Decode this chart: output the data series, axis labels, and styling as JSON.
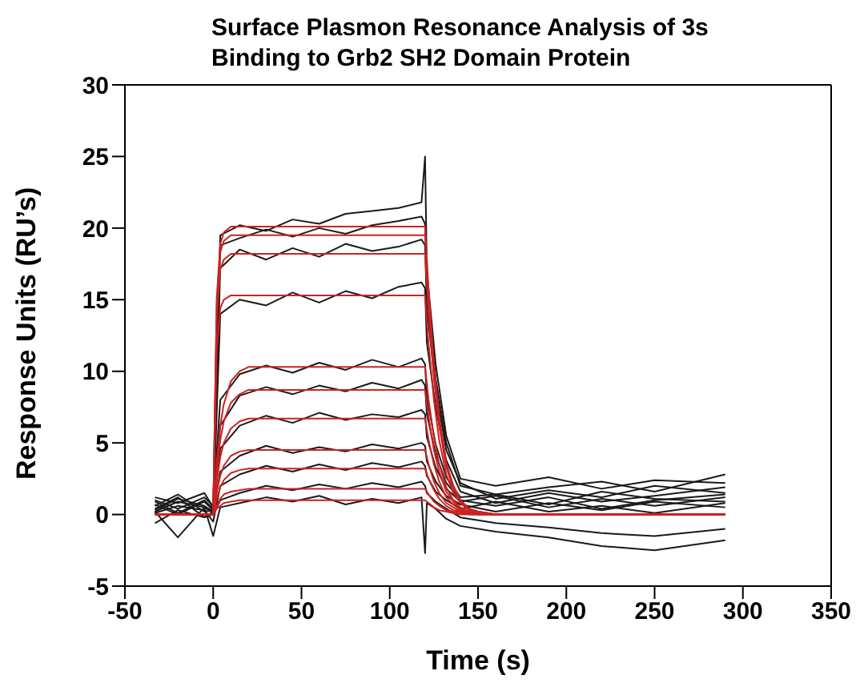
{
  "chart_data": {
    "type": "line",
    "title": "Surface Plasmon Resonance Analysis of 3s Binding to Grb2 SH2 Domain Protein",
    "xlabel": "Time (s)",
    "ylabel": "Response Units (RU’s)",
    "xlim": [
      -50,
      350
    ],
    "xticks": [
      -50,
      0,
      50,
      100,
      150,
      200,
      250,
      300,
      350
    ],
    "ylim": [
      -5,
      30
    ],
    "yticks": [
      -5,
      0,
      5,
      10,
      15,
      20,
      25,
      30
    ],
    "grid": false,
    "marker": "none",
    "line_style": "solid",
    "series": [
      {
        "color": "#1a1a1a",
        "x": [
          -33,
          -20,
          -5,
          0,
          4,
          15,
          30,
          45,
          60,
          75,
          90,
          105,
          118,
          120,
          121,
          126,
          132,
          140,
          160,
          190,
          220,
          250,
          290
        ],
        "values": [
          1.2,
          0.8,
          1.5,
          0.5,
          19.5,
          20.2,
          19.8,
          20.6,
          20.3,
          21.0,
          21.2,
          21.4,
          21.8,
          25.0,
          17,
          10.5,
          5.5,
          2.5,
          2.0,
          2.6,
          1.8,
          2.4,
          2.2
        ]
      },
      {
        "color": "#1a1a1a",
        "x": [
          -33,
          -20,
          -5,
          0,
          4,
          15,
          30,
          45,
          60,
          75,
          90,
          105,
          118,
          120,
          121,
          126,
          132,
          140,
          160,
          190,
          220,
          250,
          290
        ],
        "values": [
          0.6,
          1.4,
          0.2,
          0.3,
          18.8,
          19.3,
          19.9,
          19.4,
          20.0,
          19.6,
          20.2,
          20.5,
          20.8,
          20.3,
          16,
          9.5,
          5,
          2,
          1.4,
          1.9,
          2.3,
          1.6,
          2.8
        ]
      },
      {
        "color": "#1a1a1a",
        "x": [
          -33,
          -20,
          -5,
          0,
          4,
          15,
          30,
          45,
          60,
          75,
          90,
          105,
          118,
          120,
          121,
          126,
          132,
          140,
          160,
          190,
          220,
          250,
          290
        ],
        "values": [
          0.9,
          0.1,
          1.0,
          0.4,
          17.2,
          18.5,
          17.8,
          18.6,
          18.0,
          18.9,
          18.4,
          18.7,
          19.2,
          18.8,
          14.5,
          8.8,
          4.5,
          2.2,
          1.1,
          1.7,
          1.2,
          2.0,
          1.5
        ]
      },
      {
        "color": "#1a1a1a",
        "x": [
          -33,
          -20,
          -5,
          0,
          4,
          15,
          30,
          45,
          60,
          75,
          90,
          105,
          118,
          120,
          121,
          126,
          132,
          140,
          160,
          190,
          220,
          250,
          290
        ],
        "values": [
          0.3,
          1.1,
          0.6,
          0.2,
          14.0,
          15.0,
          14.6,
          15.5,
          14.8,
          15.6,
          15.1,
          15.9,
          16.2,
          15.8,
          12,
          7.5,
          3.8,
          1.6,
          0.8,
          1.5,
          0.9,
          1.3,
          1.9
        ]
      },
      {
        "color": "#1a1a1a",
        "x": [
          -33,
          -20,
          -5,
          0,
          4,
          15,
          30,
          45,
          60,
          75,
          90,
          105,
          118,
          120,
          121,
          126,
          132,
          140,
          160,
          190,
          220,
          250,
          290
        ],
        "values": [
          1.0,
          0.4,
          1.2,
          0.6,
          8.0,
          9.8,
          10.4,
          9.9,
          10.6,
          10.1,
          10.8,
          10.3,
          10.9,
          10.5,
          8.2,
          4.9,
          2.6,
          1.2,
          1.4,
          0.7,
          1.6,
          1.1,
          0.9
        ]
      },
      {
        "color": "#1a1a1a",
        "x": [
          -33,
          -20,
          -5,
          0,
          4,
          15,
          30,
          45,
          60,
          75,
          90,
          105,
          118,
          120,
          121,
          126,
          132,
          140,
          160,
          190,
          220,
          250,
          290
        ],
        "values": [
          0.2,
          0.9,
          0.5,
          0.1,
          6.2,
          8.3,
          8.9,
          8.4,
          9.0,
          8.6,
          9.2,
          8.8,
          9.4,
          9.0,
          7.0,
          4.2,
          2.2,
          1.0,
          0.6,
          1.2,
          0.4,
          1.0,
          1.4
        ]
      },
      {
        "color": "#1a1a1a",
        "x": [
          -33,
          -20,
          -5,
          0,
          4,
          15,
          30,
          45,
          60,
          75,
          90,
          105,
          118,
          120,
          121,
          126,
          132,
          140,
          160,
          190,
          220,
          250,
          290
        ],
        "values": [
          0.7,
          0.0,
          0.9,
          0.3,
          4.6,
          6.2,
          6.9,
          6.4,
          7.1,
          6.6,
          7.0,
          6.8,
          7.3,
          7.0,
          5.4,
          3.3,
          1.8,
          0.9,
          1.3,
          0.5,
          1.1,
          0.6,
          1.2
        ]
      },
      {
        "color": "#1a1a1a",
        "x": [
          -33,
          -20,
          -5,
          0,
          4,
          15,
          30,
          45,
          60,
          75,
          90,
          105,
          118,
          120,
          121,
          126,
          132,
          140,
          160,
          190,
          220,
          250,
          290
        ],
        "values": [
          0.4,
          1.2,
          -0.2,
          0.2,
          3.0,
          4.1,
          4.8,
          4.3,
          4.7,
          4.4,
          4.9,
          4.6,
          5.0,
          4.8,
          3.7,
          2.3,
          1.3,
          0.7,
          0.2,
          0.8,
          0.3,
          0.9,
          0.5
        ]
      },
      {
        "color": "#1a1a1a",
        "x": [
          -33,
          -20,
          -5,
          0,
          4,
          15,
          30,
          45,
          60,
          75,
          90,
          105,
          118,
          120,
          121,
          126,
          132,
          140,
          160,
          190,
          220,
          250,
          290
        ],
        "values": [
          0.1,
          0.6,
          0.3,
          -0.5,
          2.0,
          2.8,
          3.4,
          3.0,
          3.5,
          3.1,
          3.6,
          3.3,
          3.7,
          3.4,
          2.7,
          1.6,
          1.0,
          0.4,
          0.9,
          0.2,
          0.6,
          0.1,
          0.8
        ]
      },
      {
        "color": "#1a1a1a",
        "x": [
          -33,
          -20,
          -5,
          0,
          4,
          15,
          30,
          45,
          60,
          75,
          90,
          105,
          118,
          120,
          121,
          126,
          132,
          140,
          160,
          190,
          220,
          250,
          290
        ],
        "values": [
          -0.6,
          0.3,
          -0.2,
          0.0,
          1.0,
          1.5,
          2.0,
          1.7,
          2.1,
          1.8,
          2.2,
          1.9,
          2.3,
          2.0,
          1.5,
          0.9,
          0.4,
          -0.2,
          -0.6,
          -0.9,
          -1.3,
          -1.5,
          -1.0
        ]
      },
      {
        "color": "#1a1a1a",
        "x": [
          -33,
          -20,
          -5,
          0,
          4,
          15,
          30,
          45,
          60,
          75,
          90,
          105,
          118,
          120,
          121,
          126,
          132,
          140,
          160,
          190,
          220,
          250,
          290
        ],
        "values": [
          0.2,
          -1.6,
          0.5,
          -1.5,
          0.5,
          0.8,
          1.2,
          0.9,
          1.3,
          0.7,
          1.1,
          0.8,
          1.2,
          -2.7,
          0.8,
          0.4,
          -0.3,
          -0.8,
          -1.2,
          -1.6,
          -2.2,
          -2.5,
          -1.8
        ]
      },
      {
        "color": "#cc2222",
        "x": [
          -33,
          0,
          2,
          4,
          6,
          10,
          15,
          20,
          30,
          120,
          122,
          125,
          128,
          132,
          136,
          140,
          145,
          150,
          160,
          290
        ],
        "values": [
          0,
          0,
          15.1,
          18.9,
          19.7,
          20.1,
          20.1,
          20.1,
          20.1,
          20.1,
          15.7,
          10.5,
          6.8,
          3.6,
          2.0,
          1.0,
          0.4,
          0.2,
          0,
          0
        ]
      },
      {
        "color": "#cc2222",
        "x": [
          -33,
          0,
          2,
          4,
          6,
          10,
          15,
          20,
          30,
          120,
          122,
          125,
          128,
          132,
          136,
          140,
          145,
          150,
          160,
          290
        ],
        "values": [
          0,
          0,
          14.6,
          18.3,
          19.1,
          19.5,
          19.5,
          19.5,
          19.5,
          19.5,
          15.2,
          10.1,
          6.6,
          3.5,
          2.0,
          1.0,
          0.4,
          0.2,
          0,
          0
        ]
      },
      {
        "color": "#cc2222",
        "x": [
          -33,
          0,
          2,
          4,
          6,
          10,
          15,
          20,
          30,
          120,
          122,
          125,
          128,
          132,
          136,
          140,
          145,
          150,
          160,
          290
        ],
        "values": [
          0,
          0,
          13.7,
          17.1,
          17.8,
          18.2,
          18.2,
          18.2,
          18.2,
          18.2,
          14.2,
          9.5,
          6.2,
          3.3,
          1.8,
          0.9,
          0.4,
          0.2,
          0,
          0
        ]
      },
      {
        "color": "#cc2222",
        "x": [
          -33,
          0,
          2,
          4,
          6,
          10,
          15,
          20,
          30,
          120,
          122,
          125,
          128,
          132,
          136,
          140,
          145,
          150,
          160,
          290
        ],
        "values": [
          0,
          0,
          11.5,
          14.4,
          15.0,
          15.3,
          15.3,
          15.3,
          15.3,
          15.3,
          11.9,
          8.0,
          5.2,
          2.8,
          1.5,
          0.8,
          0.3,
          0.2,
          0,
          0
        ]
      },
      {
        "color": "#cc2222",
        "x": [
          -33,
          0,
          2,
          4,
          6,
          10,
          15,
          20,
          30,
          120,
          122,
          125,
          128,
          132,
          136,
          140,
          145,
          150,
          160,
          290
        ],
        "values": [
          0,
          0,
          3.6,
          6.2,
          7.7,
          9.3,
          10.0,
          10.3,
          10.3,
          10.3,
          8.0,
          5.4,
          3.5,
          1.9,
          1.0,
          0.5,
          0.2,
          0.1,
          0,
          0
        ]
      },
      {
        "color": "#cc2222",
        "x": [
          -33,
          0,
          2,
          4,
          6,
          10,
          15,
          20,
          30,
          120,
          122,
          125,
          128,
          132,
          136,
          140,
          145,
          150,
          160,
          290
        ],
        "values": [
          0,
          0,
          3.0,
          5.2,
          6.5,
          7.8,
          8.4,
          8.7,
          8.7,
          8.7,
          6.8,
          4.5,
          3.0,
          1.6,
          0.9,
          0.4,
          0.2,
          0.1,
          0,
          0
        ]
      },
      {
        "color": "#cc2222",
        "x": [
          -33,
          0,
          2,
          4,
          6,
          10,
          15,
          20,
          30,
          120,
          122,
          125,
          128,
          132,
          136,
          140,
          145,
          150,
          160,
          290
        ],
        "values": [
          0,
          0,
          2.3,
          4.0,
          5.0,
          6.0,
          6.5,
          6.7,
          6.7,
          6.7,
          5.2,
          3.5,
          2.3,
          1.2,
          0.7,
          0.3,
          0.1,
          0.1,
          0,
          0
        ]
      },
      {
        "color": "#cc2222",
        "x": [
          -33,
          0,
          2,
          4,
          6,
          10,
          15,
          20,
          30,
          120,
          122,
          125,
          128,
          132,
          136,
          140,
          145,
          150,
          160,
          290
        ],
        "values": [
          0,
          0,
          1.6,
          2.7,
          3.4,
          4.1,
          4.4,
          4.5,
          4.5,
          4.5,
          3.5,
          2.3,
          1.5,
          0.8,
          0.5,
          0.2,
          0.1,
          0,
          0,
          0
        ]
      },
      {
        "color": "#cc2222",
        "x": [
          -33,
          0,
          2,
          4,
          6,
          10,
          15,
          20,
          30,
          120,
          122,
          125,
          128,
          132,
          136,
          140,
          145,
          150,
          160,
          290
        ],
        "values": [
          0,
          0,
          1.1,
          1.9,
          2.4,
          2.9,
          3.1,
          3.2,
          3.2,
          3.2,
          2.5,
          1.7,
          1.1,
          0.6,
          0.3,
          0.2,
          0.1,
          0,
          0,
          0
        ]
      },
      {
        "color": "#cc2222",
        "x": [
          -33,
          0,
          2,
          4,
          6,
          10,
          15,
          20,
          30,
          120,
          122,
          125,
          128,
          132,
          136,
          140,
          145,
          150,
          160,
          290
        ],
        "values": [
          0,
          0,
          0.6,
          1.1,
          1.4,
          1.6,
          1.7,
          1.8,
          1.8,
          1.8,
          1.4,
          0.9,
          0.6,
          0.3,
          0.2,
          0.1,
          0,
          0,
          0,
          0
        ]
      },
      {
        "color": "#cc2222",
        "x": [
          -33,
          0,
          2,
          4,
          6,
          10,
          15,
          20,
          30,
          120,
          122,
          125,
          128,
          132,
          136,
          140,
          145,
          150,
          160,
          290
        ],
        "values": [
          0,
          0,
          0.4,
          0.6,
          0.8,
          0.9,
          1.0,
          1.0,
          1.0,
          1.0,
          0.8,
          0.5,
          0.3,
          0.2,
          0.1,
          0,
          0,
          0,
          0,
          0
        ]
      }
    ]
  }
}
